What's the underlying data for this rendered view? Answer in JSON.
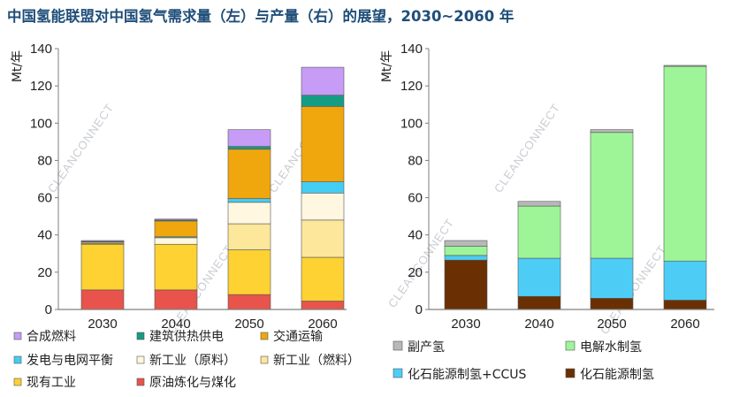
{
  "title": "中国氢能联盟对中国氢气需求量（左）与产量（右）的展望，2030~2060 年",
  "watermark": "CLEANCONNECT",
  "chart_data": [
    {
      "type": "bar",
      "stacked": true,
      "title": "",
      "xlabel": "",
      "ylabel": "Mt/年",
      "ylim": [
        0,
        140
      ],
      "yticks": [
        0,
        20,
        40,
        60,
        80,
        100,
        120,
        140
      ],
      "categories": [
        "2030",
        "2040",
        "2050",
        "2060"
      ],
      "series": [
        {
          "name": "原油炼化与煤化",
          "color": "#e8534b",
          "values": [
            10.5,
            10.5,
            8,
            4.5
          ]
        },
        {
          "name": "现有工业",
          "color": "#fdd232",
          "values": [
            24.5,
            24.5,
            24,
            23.5
          ]
        },
        {
          "name": "新工业（燃料）",
          "color": "#fde79b",
          "values": [
            0,
            0,
            14,
            20
          ]
        },
        {
          "name": "新工业（原料）",
          "color": "#fff7e0",
          "values": [
            0,
            3.5,
            11.5,
            14.5
          ]
        },
        {
          "name": "发电与电网平衡",
          "color": "#43cdf5",
          "values": [
            0.5,
            0.5,
            2,
            6
          ]
        },
        {
          "name": "交通运输",
          "color": "#f0a70d",
          "values": [
            0.8,
            8.5,
            26.5,
            40.5
          ]
        },
        {
          "name": "建筑供热供电",
          "color": "#149c84",
          "values": [
            0.2,
            0.5,
            1.5,
            6
          ]
        },
        {
          "name": "合成燃料",
          "color": "#c69cf6",
          "values": [
            0.5,
            0.5,
            9,
            15
          ]
        }
      ],
      "legend_order": [
        "合成燃料",
        "建筑供热供电",
        "交通运输",
        "发电与电网平衡",
        "新工业（原料）",
        "新工业（燃料）",
        "现有工业",
        "原油炼化与煤化"
      ]
    },
    {
      "type": "bar",
      "stacked": true,
      "title": "",
      "xlabel": "",
      "ylabel": "Mt/年",
      "ylim": [
        0,
        140
      ],
      "yticks": [
        0,
        20,
        40,
        60,
        80,
        100,
        120,
        140
      ],
      "categories": [
        "2030",
        "2040",
        "2050",
        "2060"
      ],
      "series": [
        {
          "name": "化石能源制氢",
          "color": "#6a3003",
          "values": [
            26.5,
            7,
            6,
            5
          ]
        },
        {
          "name": "化石能源制氢+CCUS",
          "color": "#4dcdf6",
          "values": [
            2.5,
            20.5,
            21.5,
            21
          ]
        },
        {
          "name": "电解水制氢",
          "color": "#9ef598",
          "values": [
            5,
            28,
            67.5,
            104.5
          ]
        },
        {
          "name": "副产氢",
          "color": "#b8b8b8",
          "values": [
            3,
            2.5,
            1.5,
            0.5
          ]
        }
      ],
      "legend_order": [
        "副产氢",
        "电解水制氢",
        "化石能源制氢+CCUS",
        "化石能源制氢"
      ]
    }
  ]
}
